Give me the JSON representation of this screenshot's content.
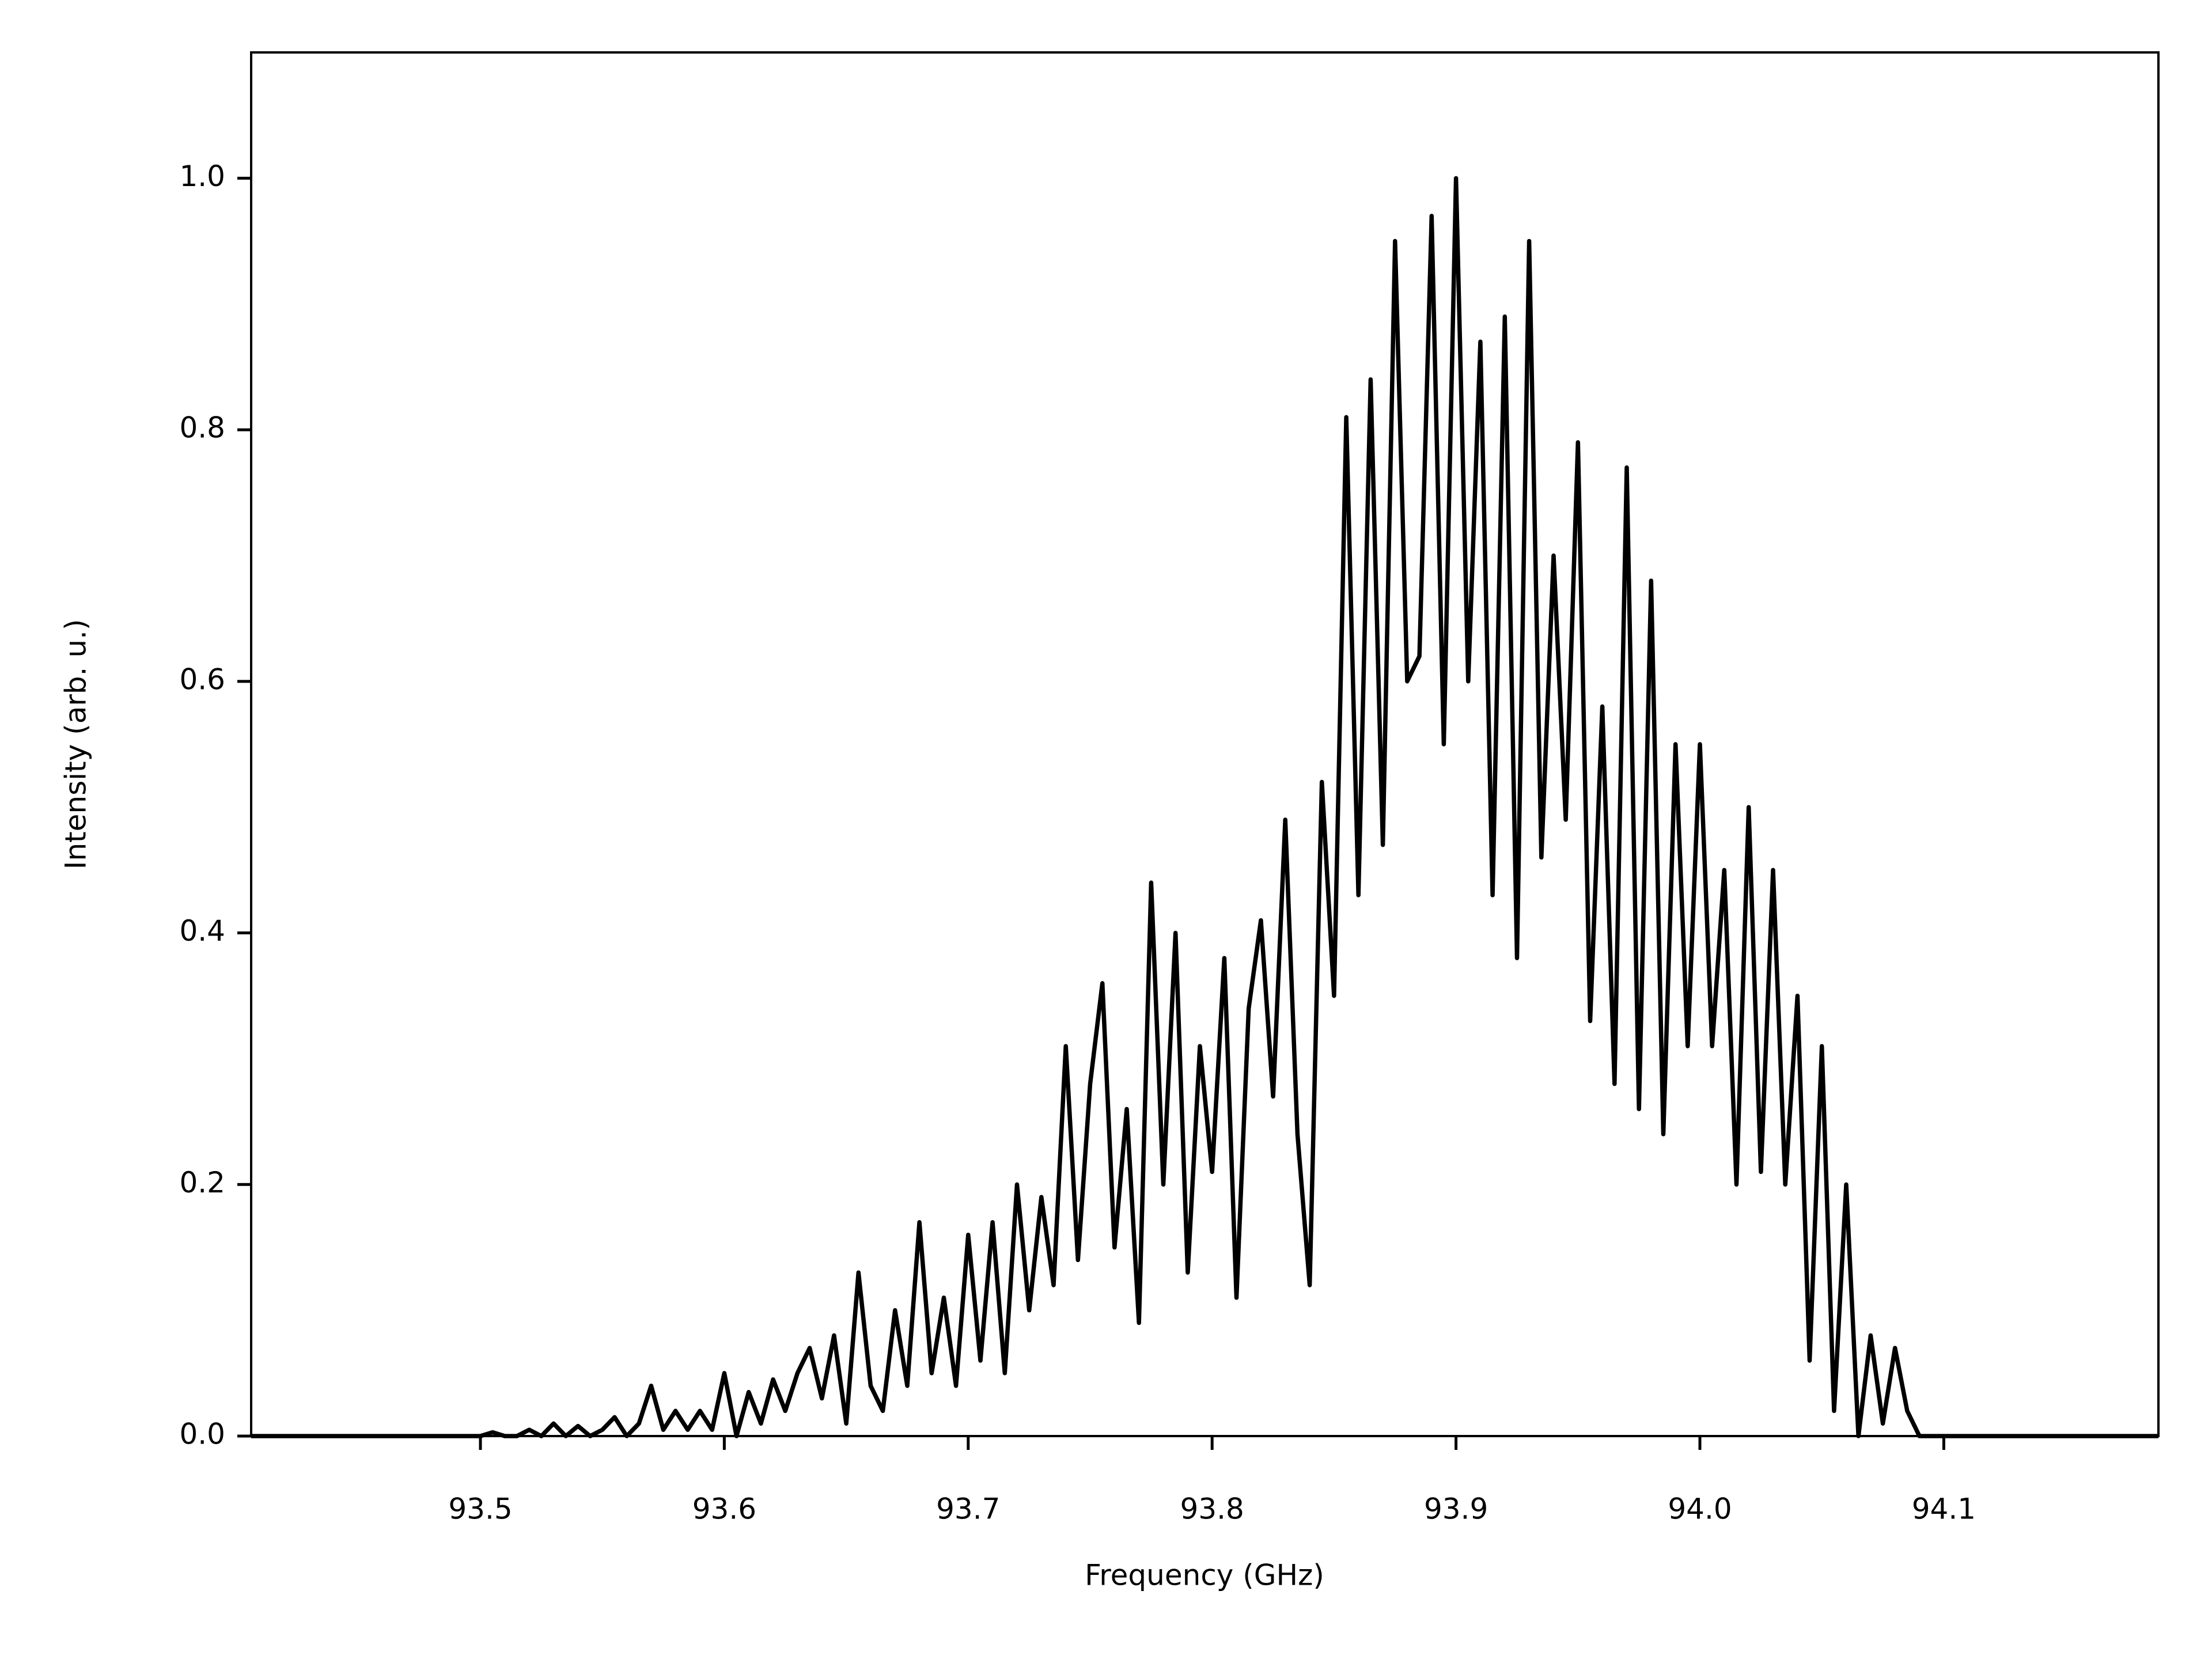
{
  "chart_data": {
    "type": "line",
    "x_label": "Frequency (GHz)",
    "y_label": "Intensity (arb. u.)",
    "xlim": [
      93.406,
      94.188
    ],
    "ylim": [
      0,
      1.1
    ],
    "xticks": [
      93.5,
      93.6,
      93.7,
      93.8,
      93.9,
      {
        "value": 94,
        "label": "94.0"
      },
      94.1
    ],
    "yticks": [
      {
        "value": 0,
        "label": "0.0"
      },
      0.2,
      0.4,
      0.6,
      0.8,
      {
        "value": 1,
        "label": "1.0"
      }
    ],
    "grid": false,
    "x": [
      93.406,
      93.5,
      93.505,
      93.51,
      93.515,
      93.52,
      93.525,
      93.53,
      93.535,
      93.54,
      93.545,
      93.55,
      93.555,
      93.56,
      93.565,
      93.57,
      93.575,
      93.58,
      93.585,
      93.59,
      93.595,
      93.6,
      93.605,
      93.61,
      93.615,
      93.62,
      93.625,
      93.63,
      93.635,
      93.64,
      93.645,
      93.65,
      93.655,
      93.66,
      93.665,
      93.67,
      93.675,
      93.68,
      93.685,
      93.69,
      93.695,
      93.7,
      93.705,
      93.71,
      93.715,
      93.72,
      93.725,
      93.73,
      93.735,
      93.74,
      93.745,
      93.75,
      93.755,
      93.76,
      93.765,
      93.77,
      93.775,
      93.78,
      93.785,
      93.79,
      93.795,
      93.8,
      93.805,
      93.81,
      93.815,
      93.82,
      93.825,
      93.83,
      93.835,
      93.84,
      93.845,
      93.85,
      93.855,
      93.86,
      93.865,
      93.87,
      93.875,
      93.88,
      93.885,
      93.89,
      93.895,
      93.9,
      93.905,
      93.91,
      93.915,
      93.92,
      93.925,
      93.93,
      93.935,
      93.94,
      93.945,
      93.95,
      93.955,
      93.96,
      93.965,
      93.97,
      93.975,
      93.98,
      93.985,
      93.99,
      93.995,
      94.0,
      94.005,
      94.01,
      94.015,
      94.02,
      94.025,
      94.03,
      94.035,
      94.04,
      94.045,
      94.05,
      94.055,
      94.06,
      94.065,
      94.07,
      94.075,
      94.08,
      94.085,
      94.09,
      94.188
    ],
    "series": [
      {
        "color": "#000000",
        "values": [
          0,
          0,
          0.003,
          0,
          0,
          0.005,
          0,
          0.01,
          0,
          0.008,
          0,
          0.005,
          0.015,
          0,
          0.01,
          0.04,
          0.005,
          0.02,
          0.005,
          0.02,
          0.005,
          0.05,
          0,
          0.035,
          0.01,
          0.045,
          0.02,
          0.05,
          0.07,
          0.03,
          0.08,
          0.01,
          0.13,
          0.04,
          0.02,
          0.1,
          0.04,
          0.17,
          0.05,
          0.11,
          0.04,
          0.16,
          0.06,
          0.17,
          0.05,
          0.2,
          0.1,
          0.19,
          0.12,
          0.31,
          0.14,
          0.28,
          0.36,
          0.15,
          0.26,
          0.09,
          0.44,
          0.2,
          0.4,
          0.13,
          0.31,
          0.21,
          0.38,
          0.11,
          0.34,
          0.41,
          0.27,
          0.49,
          0.24,
          0.12,
          0.52,
          0.35,
          0.81,
          0.43,
          0.84,
          0.47,
          0.95,
          0.6,
          0.62,
          0.97,
          0.55,
          1.0,
          0.6,
          0.87,
          0.43,
          0.89,
          0.38,
          0.95,
          0.46,
          0.7,
          0.49,
          0.79,
          0.33,
          0.58,
          0.28,
          0.77,
          0.26,
          0.68,
          0.24,
          0.55,
          0.31,
          0.55,
          0.31,
          0.45,
          0.2,
          0.5,
          0.21,
          0.45,
          0.2,
          0.35,
          0.06,
          0.31,
          0.02,
          0.2,
          0,
          0.08,
          0.01,
          0.07,
          0.02,
          0,
          0
        ]
      }
    ]
  }
}
